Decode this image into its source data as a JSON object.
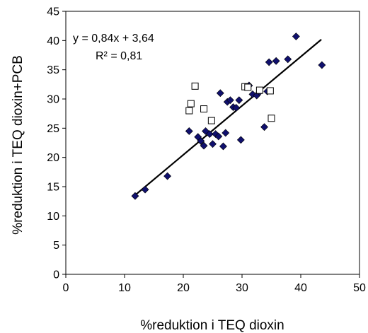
{
  "chart_data": {
    "type": "scatter",
    "title": "",
    "xlabel": "%reduktion i TEQ dioxin",
    "ylabel": "%reduktion i TEQ dioxin+PCB",
    "xlim": [
      0,
      50
    ],
    "ylim": [
      0,
      45
    ],
    "xticks": [
      "0",
      "10",
      "20",
      "30",
      "40",
      "50"
    ],
    "yticks": [
      "0",
      "5",
      "10",
      "15",
      "20",
      "25",
      "30",
      "35",
      "40",
      "45"
    ],
    "grid": false,
    "legend": "none",
    "annotations": {
      "equation": "y = 0,84x + 3,64",
      "r2": "R² = 0,81"
    },
    "trendline": {
      "slope": 0.84,
      "intercept": 3.64,
      "x_range": [
        11.8,
        43.5
      ]
    },
    "series": [
      {
        "marker": "filled-diamond",
        "color": "#10106e",
        "points": [
          [
            11.8,
            13.4
          ],
          [
            13.5,
            14.5
          ],
          [
            17.3,
            16.8
          ],
          [
            21.0,
            24.5
          ],
          [
            22.5,
            23.5
          ],
          [
            23.0,
            22.8
          ],
          [
            23.5,
            22.0
          ],
          [
            23.8,
            24.5
          ],
          [
            24.5,
            24.0
          ],
          [
            25.0,
            22.3
          ],
          [
            25.5,
            24.0
          ],
          [
            26.0,
            23.6
          ],
          [
            26.3,
            31.0
          ],
          [
            26.8,
            21.9
          ],
          [
            27.2,
            24.2
          ],
          [
            27.5,
            29.5
          ],
          [
            28.0,
            29.8
          ],
          [
            28.5,
            28.6
          ],
          [
            29.0,
            28.5
          ],
          [
            29.5,
            29.8
          ],
          [
            29.8,
            23.0
          ],
          [
            31.2,
            32.3
          ],
          [
            31.8,
            30.8
          ],
          [
            32.5,
            30.6
          ],
          [
            33.0,
            31.2
          ],
          [
            33.8,
            25.2
          ],
          [
            34.3,
            31.3
          ],
          [
            34.6,
            36.3
          ],
          [
            35.8,
            36.5
          ],
          [
            37.8,
            36.8
          ],
          [
            39.2,
            40.7
          ],
          [
            43.6,
            35.8
          ]
        ]
      },
      {
        "marker": "open-square",
        "color": "#000000",
        "points": [
          [
            21.0,
            28.0
          ],
          [
            21.3,
            29.2
          ],
          [
            22.0,
            32.2
          ],
          [
            23.5,
            28.3
          ],
          [
            24.8,
            26.3
          ],
          [
            30.5,
            32.1
          ],
          [
            31.0,
            32.0
          ],
          [
            33.0,
            31.5
          ],
          [
            34.8,
            31.4
          ],
          [
            35.0,
            26.7
          ]
        ]
      }
    ]
  }
}
